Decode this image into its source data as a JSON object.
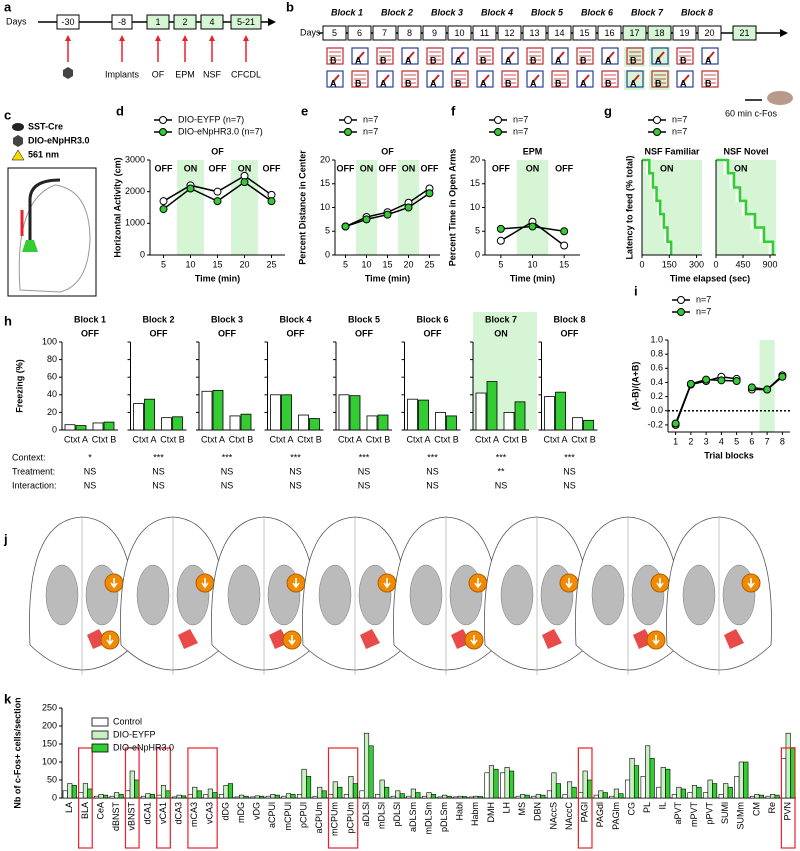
{
  "panel_a": {
    "label": "a",
    "axis_label": "Days",
    "days": [
      "-30",
      "-8",
      "1",
      "2",
      "4",
      "5-21"
    ],
    "box_colors": [
      "#ffffff",
      "#ffffff",
      "#d5f5d5",
      "#d5f5d5",
      "#d5f5d5",
      "#d5f5d5"
    ],
    "events": [
      "Implants",
      "OF",
      "EPM",
      "NSF",
      "CFCDL"
    ]
  },
  "panel_b": {
    "label": "b",
    "axis_label": "Days",
    "blocks": [
      "Block 1",
      "Block 2",
      "Block 3",
      "Block 4",
      "Block 5",
      "Block 6",
      "Block 7",
      "Block 8"
    ],
    "days": [
      "5",
      "6",
      "7",
      "8",
      "9",
      "10",
      "11",
      "12",
      "13",
      "14",
      "15",
      "16",
      "17",
      "18",
      "19",
      "20",
      "21"
    ],
    "day_colors": [
      "#fff",
      "#fff",
      "#fff",
      "#fff",
      "#fff",
      "#fff",
      "#fff",
      "#fff",
      "#fff",
      "#fff",
      "#fff",
      "#fff",
      "#d5f5d5",
      "#d5f5d5",
      "#fff",
      "#fff",
      "#d5f5d5"
    ],
    "row1": [
      "B",
      "A",
      "B",
      "A",
      "B",
      "A",
      "B",
      "A",
      "B",
      "A",
      "B",
      "A",
      "B",
      "A",
      "B",
      "A"
    ],
    "row2": [
      "A",
      "B",
      "A",
      "B",
      "A",
      "B",
      "A",
      "B",
      "A",
      "B",
      "A",
      "B",
      "A",
      "B",
      "A",
      "B"
    ],
    "end_label": "60 min c-Fos"
  },
  "panel_c": {
    "label": "c",
    "lines": [
      "SST-Cre",
      "DIO-eNpHR3.0",
      "561 nm"
    ]
  },
  "panel_j": {
    "label": "j"
  },
  "chart_data": [
    {
      "type": "line",
      "label": "d",
      "title": "OF",
      "title_color": "#e8212b",
      "xlabel": "Time (min)",
      "ylabel": "Horizontal Activity (cm)",
      "x": [
        5,
        10,
        15,
        20,
        25
      ],
      "xlim": [
        2.5,
        27.5
      ],
      "xticks": [
        5,
        10,
        15,
        20,
        25
      ],
      "ylim": [
        0,
        3000
      ],
      "yticks": [
        0,
        1000,
        2000,
        3000
      ],
      "on_periods": [
        [
          7.5,
          12.5
        ],
        [
          17.5,
          22.5
        ]
      ],
      "period_labels": [
        "OFF",
        "ON",
        "OFF",
        "ON",
        "OFF"
      ],
      "shade_color": "#d5f5d5",
      "series": [
        {
          "name": "DIO-EYFP (n=7)",
          "color": "#ffffff",
          "values": [
            1700,
            2200,
            2000,
            2500,
            1900
          ]
        },
        {
          "name": "DIO-eNpHR3.0 (n=7)",
          "color": "#33cc33",
          "values": [
            1450,
            2100,
            1700,
            2300,
            1700
          ]
        }
      ]
    },
    {
      "type": "line",
      "label": "e",
      "title": "OF",
      "title_color": "#e8212b",
      "xlabel": "Time (min)",
      "ylabel": "Percent Distance in Center",
      "x": [
        5,
        10,
        15,
        20,
        25
      ],
      "xlim": [
        2.5,
        27.5
      ],
      "xticks": [
        5,
        10,
        15,
        20,
        25
      ],
      "ylim": [
        0,
        20
      ],
      "yticks": [
        0,
        5,
        10,
        15,
        20
      ],
      "on_periods": [
        [
          7.5,
          12.5
        ],
        [
          17.5,
          22.5
        ]
      ],
      "period_labels": [
        "OFF",
        "ON",
        "OFF",
        "ON",
        "OFF"
      ],
      "shade_color": "#d5f5d5",
      "series": [
        {
          "name": "n=7",
          "color": "#ffffff",
          "values": [
            6,
            8,
            9,
            11,
            14
          ]
        },
        {
          "name": "n=7",
          "color": "#33cc33",
          "values": [
            6,
            7.5,
            8.5,
            10,
            13
          ]
        }
      ]
    },
    {
      "type": "line",
      "label": "f",
      "title": "EPM",
      "title_color": "#e8212b",
      "xlabel": "Time (min)",
      "ylabel": "Percent Time in Open  Arms",
      "x": [
        5,
        10,
        15
      ],
      "xlim": [
        2.5,
        17.5
      ],
      "xticks": [
        5,
        10,
        15
      ],
      "ylim": [
        0,
        20
      ],
      "yticks": [
        0,
        5,
        10,
        15,
        20
      ],
      "on_periods": [
        [
          7.5,
          12.5
        ]
      ],
      "period_labels": [
        "OFF",
        "ON",
        "OFF"
      ],
      "shade_color": "#d5f5d5",
      "series": [
        {
          "name": "n=7",
          "color": "#ffffff",
          "values": [
            3,
            7,
            2
          ]
        },
        {
          "name": "n=7",
          "color": "#33cc33",
          "values": [
            5.5,
            6,
            5
          ]
        }
      ]
    },
    {
      "type": "step",
      "label": "g",
      "xlabel": "Time elapsed (sec)",
      "ylabel": "Latency to feed (% total)",
      "ylim": [
        0,
        100
      ],
      "period_label": "ON",
      "shade_color": "#d5f5d5",
      "title_color": "#e8212b",
      "panels": [
        {
          "title": "NSF Familiar",
          "xlim": [
            0,
            330
          ],
          "xticks": [
            0,
            150,
            300
          ]
        },
        {
          "title": "NSF Novel",
          "xlim": [
            0,
            1000
          ],
          "xticks": [
            0,
            450,
            900
          ]
        }
      ],
      "series": [
        {
          "name": "n=7",
          "color": "#ffffff",
          "panels": [
            {
              "x": [
                0,
                30,
                50,
                70,
                90,
                110,
                130,
                150
              ],
              "values": [
                100,
                86,
                71,
                57,
                43,
                29,
                14,
                0
              ]
            },
            {
              "x": [
                0,
                150,
                250,
                350,
                450,
                600,
                750,
                900
              ],
              "values": [
                100,
                86,
                71,
                57,
                43,
                29,
                14,
                0
              ]
            }
          ]
        },
        {
          "name": "n=7",
          "color": "#33cc33",
          "panels": [
            {
              "x": [
                0,
                40,
                60,
                80,
                100,
                120,
                140,
                160
              ],
              "values": [
                100,
                86,
                71,
                57,
                43,
                29,
                14,
                0
              ]
            },
            {
              "x": [
                0,
                200,
                300,
                400,
                500,
                650,
                800,
                950
              ],
              "values": [
                100,
                86,
                71,
                57,
                43,
                29,
                14,
                0
              ]
            }
          ]
        }
      ]
    },
    {
      "type": "blocks",
      "label": "h",
      "ylabel": "Freezing (%)",
      "ylim": [
        0,
        100
      ],
      "yticks": [
        0,
        20,
        40,
        60,
        80,
        100
      ],
      "categories": [
        "Ctxt A",
        "Ctxt B"
      ],
      "shade_color": "#d5f5d5",
      "blocks": [
        {
          "title": "Block 1",
          "period": "OFF",
          "shaded": false,
          "series": [
            {
              "color": "#ffffff",
              "values": [
                6,
                8
              ]
            },
            {
              "color": "#33cc33",
              "values": [
                5,
                9
              ]
            }
          ]
        },
        {
          "title": "Block 2",
          "period": "OFF",
          "shaded": false,
          "series": [
            {
              "color": "#ffffff",
              "values": [
                30,
                14
              ]
            },
            {
              "color": "#33cc33",
              "values": [
                35,
                15
              ]
            }
          ]
        },
        {
          "title": "Block 3",
          "period": "OFF",
          "shaded": false,
          "series": [
            {
              "color": "#ffffff",
              "values": [
                44,
                16
              ]
            },
            {
              "color": "#33cc33",
              "values": [
                45,
                18
              ]
            }
          ]
        },
        {
          "title": "Block 4",
          "period": "OFF",
          "shaded": false,
          "series": [
            {
              "color": "#ffffff",
              "values": [
                40,
                17
              ]
            },
            {
              "color": "#33cc33",
              "values": [
                40,
                13
              ]
            }
          ]
        },
        {
          "title": "Block 5",
          "period": "OFF",
          "shaded": false,
          "series": [
            {
              "color": "#ffffff",
              "values": [
                40,
                16
              ]
            },
            {
              "color": "#33cc33",
              "values": [
                39,
                17
              ]
            }
          ]
        },
        {
          "title": "Block 6",
          "period": "OFF",
          "shaded": false,
          "series": [
            {
              "color": "#ffffff",
              "values": [
                35,
                20
              ]
            },
            {
              "color": "#33cc33",
              "values": [
                34,
                16
              ]
            }
          ]
        },
        {
          "title": "Block 7",
          "period": "ON",
          "shaded": true,
          "series": [
            {
              "color": "#ffffff",
              "values": [
                42,
                20
              ]
            },
            {
              "color": "#33cc33",
              "values": [
                55,
                32
              ]
            }
          ]
        },
        {
          "title": "Block 8",
          "period": "OFF",
          "shaded": false,
          "series": [
            {
              "color": "#ffffff",
              "values": [
                38,
                14
              ]
            },
            {
              "color": "#33cc33",
              "values": [
                43,
                11
              ]
            }
          ]
        }
      ],
      "stats": {
        "rows": [
          "Context:",
          "Treatment:",
          "Interaction:"
        ],
        "values": [
          [
            "*",
            "***",
            "***",
            "***",
            "***",
            "***",
            "***",
            "***"
          ],
          [
            "NS",
            "NS",
            "NS",
            "NS",
            "NS",
            "NS",
            "**",
            "NS"
          ],
          [
            "NS",
            "NS",
            "NS",
            "NS",
            "NS",
            "NS",
            "NS",
            "NS"
          ]
        ]
      }
    },
    {
      "type": "line",
      "label": "i",
      "xlabel": "Trial blocks",
      "ylabel": "(A-B)/(A+B)",
      "x": [
        1,
        2,
        3,
        4,
        5,
        6,
        7,
        8
      ],
      "xlim": [
        0.5,
        8.5
      ],
      "xticks": [
        1,
        2,
        3,
        4,
        5,
        6,
        7,
        8
      ],
      "ylim": [
        -0.3,
        1.0
      ],
      "yticks": [
        -0.2,
        {
          "value": 0,
          "label": "0.0"
        },
        0.2,
        0.4,
        0.6,
        0.8,
        {
          "value": 1,
          "label": "1.0"
        }
      ],
      "reference_line": 0,
      "line_break_after": 5,
      "on_periods": [
        [
          6.5,
          7.5
        ]
      ],
      "shade_color": "#d5f5d5",
      "series": [
        {
          "name": "n=7",
          "color": "#ffffff",
          "values": [
            -0.2,
            0.37,
            0.42,
            0.48,
            0.45,
            0.3,
            0.3,
            0.5
          ]
        },
        {
          "name": "n=7",
          "color": "#33cc33",
          "values": [
            -0.18,
            0.38,
            0.44,
            0.43,
            0.42,
            0.33,
            0.3,
            0.48
          ]
        }
      ]
    },
    {
      "type": "bar",
      "label": "k",
      "ylabel": "Nb of c-Fos+ cells/section",
      "ylim": [
        0,
        250
      ],
      "yticks": [
        0,
        50,
        100,
        150,
        200,
        250
      ],
      "highlight_color": "#e8212b",
      "categories": [
        "LA",
        "BLA",
        "CeA",
        "dBNST",
        "vBNST",
        "dCA1",
        "vCA1",
        "dCA3",
        "mCA3",
        "vCA3",
        "dDG",
        "mDG",
        "vDG",
        "aCPUl",
        "mCPUl",
        "pCPUl",
        "aCPUm",
        "mCPUm",
        "pCPUm",
        "aDLSl",
        "mDLSl",
        "pDLSl",
        "aDLSm",
        "mDLSm",
        "pDLSm",
        "Habl",
        "Habm",
        "DMH",
        "LH",
        "MS",
        "DBN",
        "NAccS",
        "NAccC",
        "PAGl",
        "PAGdl",
        "PAGlm",
        "CG",
        "PL",
        "IL",
        "aPVT",
        "mPVT",
        "pPVT",
        "SUMl",
        "SUMm",
        "CM",
        "Re",
        "PVN"
      ],
      "highlighted": [
        "BLA",
        "vBNST",
        "vCA1",
        "mCA3",
        "vCA3",
        "mCPUm",
        "pCPUm",
        "PAGl",
        "PVN"
      ],
      "series": [
        {
          "name": "Control",
          "color": "#ffffff",
          "values": [
            20,
            15,
            5,
            5,
            20,
            5,
            8,
            3,
            10,
            10,
            10,
            3,
            3,
            5,
            5,
            10,
            5,
            10,
            10,
            20,
            10,
            5,
            5,
            5,
            3,
            3,
            3,
            70,
            70,
            5,
            5,
            20,
            10,
            15,
            8,
            5,
            50,
            60,
            30,
            10,
            15,
            15,
            10,
            60,
            5,
            5,
            110
          ]
        },
        {
          "name": "DIO-EYFP",
          "color": "#c8f0c0",
          "values": [
            40,
            40,
            10,
            15,
            75,
            12,
            35,
            8,
            30,
            25,
            35,
            8,
            6,
            10,
            12,
            80,
            30,
            45,
            60,
            180,
            50,
            20,
            25,
            15,
            8,
            5,
            5,
            90,
            85,
            10,
            10,
            70,
            45,
            75,
            20,
            25,
            110,
            145,
            85,
            30,
            35,
            50,
            40,
            100,
            10,
            10,
            180
          ]
        },
        {
          "name": "DIO-eNpHR3.0",
          "color": "#33cc33",
          "values": [
            35,
            25,
            8,
            10,
            50,
            10,
            20,
            6,
            20,
            15,
            40,
            5,
            5,
            8,
            10,
            60,
            20,
            30,
            40,
            145,
            30,
            12,
            15,
            10,
            5,
            4,
            4,
            80,
            75,
            8,
            8,
            40,
            30,
            50,
            15,
            12,
            90,
            110,
            80,
            25,
            30,
            40,
            30,
            100,
            8,
            8,
            140
          ]
        }
      ]
    }
  ]
}
